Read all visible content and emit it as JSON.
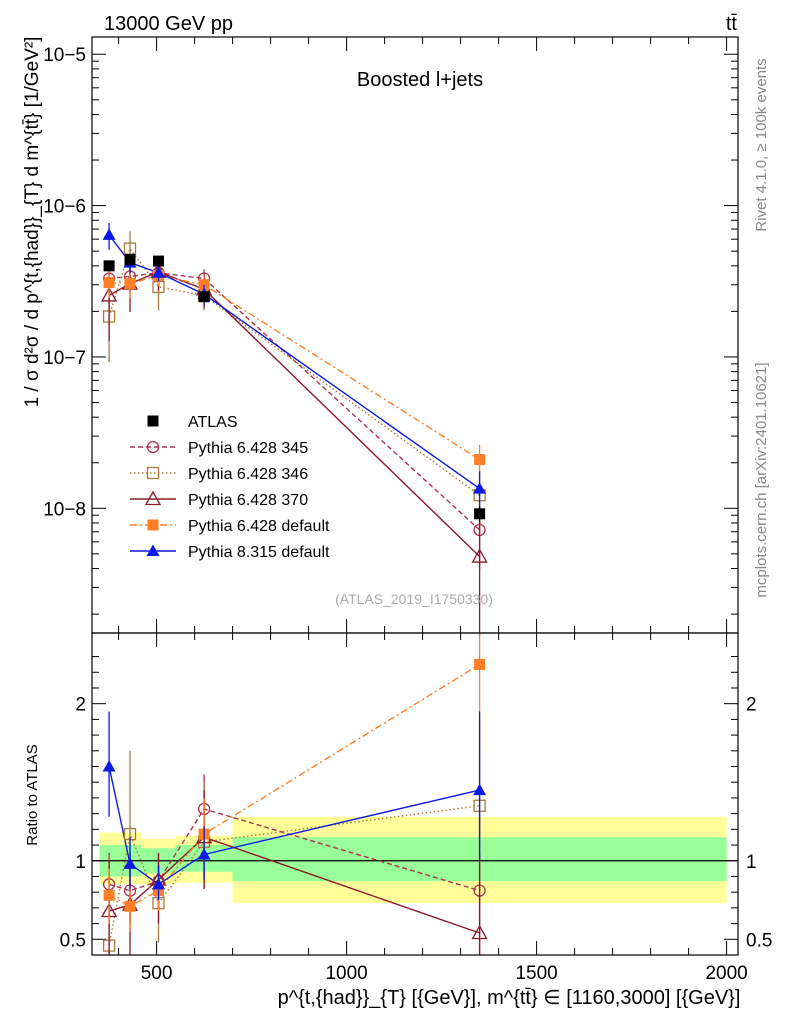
{
  "header": {
    "energy_label": "13000 GeV pp",
    "process_label": "tt̄",
    "rivet_label": "Rivet 4.1.0, ≥ 100k events",
    "mcplots_label": "mcplots.cern.ch [arXiv:2401.10621]"
  },
  "chart_data": [
    {
      "type": "line",
      "name": "main",
      "title": "Boosted l+jets",
      "watermark": "(ATLAS_2019_I1750330)",
      "ylabel": "1 / σ d²σ / d p^{t,{had}}_{T} d m^{tt̄} [1/GeV²]",
      "yscale": "log",
      "xlim": [
        330,
        2030
      ],
      "ylim": [
        1.5e-09,
        1.3e-05
      ],
      "yticks": [
        {
          "value": 1e-08,
          "label": "10−8"
        },
        {
          "value": 1e-07,
          "label": "10−7"
        },
        {
          "value": 1e-06,
          "label": "10−6"
        },
        {
          "value": 1e-05,
          "label": "10−5"
        }
      ],
      "x": [
        375,
        430,
        505,
        625,
        1350
      ],
      "legend_position": "center-left",
      "series": [
        {
          "name": "ATLAS",
          "color": "#000000",
          "marker": "square-filled",
          "dash": "none",
          "values": [
            4e-07,
            4.4e-07,
            4.3e-07,
            2.5e-07,
            9.2e-09
          ],
          "err_rel": [
            0.04,
            0.04,
            0.04,
            0.05,
            0.12
          ]
        },
        {
          "name": "Pythia 6.428 345",
          "color": "#b03050",
          "marker": "circle-open",
          "dash": "5,3",
          "values": [
            3.3e-07,
            3.4e-07,
            3.6e-07,
            3.3e-07,
            7.2e-09
          ],
          "err_rel": [
            0.2,
            0.2,
            0.15,
            0.15,
            0.45
          ]
        },
        {
          "name": "Pythia 6.428 346",
          "color": "#a8793a",
          "marker": "square-open",
          "dash": "1.5,2.5",
          "values": [
            1.85e-07,
            5.2e-07,
            2.9e-07,
            2.55e-07,
            1.22e-08
          ],
          "err_rel": [
            0.5,
            0.3,
            0.3,
            0.2,
            0.4
          ]
        },
        {
          "name": "Pythia 6.428 370",
          "color": "#8b1a2a",
          "marker": "triangle-open",
          "dash": "none",
          "values": [
            2.55e-07,
            3.05e-07,
            3.65e-07,
            2.8e-07,
            4.8e-09
          ],
          "err_rel": [
            0.5,
            0.35,
            0.25,
            0.25,
            0.7
          ]
        },
        {
          "name": "Pythia 6.428 default",
          "color": "#ff7f27",
          "marker": "square-filled",
          "dash": "7,3,2,3",
          "values": [
            3.1e-07,
            3.05e-07,
            3.45e-07,
            3e-07,
            2.1e-08
          ],
          "err_rel": [
            0.2,
            0.2,
            0.15,
            0.15,
            0.25
          ]
        },
        {
          "name": "Pythia 8.315 default",
          "color": "#0a1ae6",
          "marker": "triangle-filled",
          "dash": "none",
          "values": [
            6.4e-07,
            4.2e-07,
            3.6e-07,
            2.6e-07,
            1.35e-08
          ],
          "err_rel": [
            0.2,
            0.15,
            0.12,
            0.15,
            0.3
          ]
        }
      ]
    },
    {
      "type": "line",
      "name": "ratio",
      "ylabel": "Ratio to ATLAS",
      "xlabel": "p^{t,{had}}_{T} [{GeV}], m^{tt̄} ∈ [1160,3000] [{GeV}]",
      "xlim": [
        330,
        2030
      ],
      "ylim": [
        0.4,
        2.45
      ],
      "xticks": [
        {
          "value": 500,
          "label": "500"
        },
        {
          "value": 1000,
          "label": "1000"
        },
        {
          "value": 1500,
          "label": "1500"
        },
        {
          "value": 2000,
          "label": "2000"
        }
      ],
      "yticks": [
        {
          "value": 0.5,
          "label": "0.5"
        },
        {
          "value": 1,
          "label": "1"
        },
        {
          "value": 2,
          "label": "2"
        }
      ],
      "bands": [
        {
          "x0": 350,
          "x1": 400,
          "yellow": [
            0.85,
            1.18
          ],
          "green": [
            0.9,
            1.1
          ]
        },
        {
          "x0": 400,
          "x1": 460,
          "yellow": [
            0.85,
            1.18
          ],
          "green": [
            0.9,
            1.1
          ]
        },
        {
          "x0": 460,
          "x1": 550,
          "yellow": [
            0.85,
            1.14
          ],
          "green": [
            0.92,
            1.08
          ]
        },
        {
          "x0": 550,
          "x1": 700,
          "yellow": [
            0.86,
            1.16
          ],
          "green": [
            0.93,
            1.1
          ]
        },
        {
          "x0": 700,
          "x1": 2000,
          "yellow": [
            0.73,
            1.28
          ],
          "green": [
            0.87,
            1.15
          ]
        }
      ],
      "x": [
        375,
        430,
        505,
        625,
        1350
      ],
      "series": [
        {
          "name": "Pythia 6.428 345",
          "color": "#b03050",
          "marker": "circle-open",
          "dash": "5,3",
          "values": [
            0.85,
            0.81,
            0.87,
            1.33,
            0.81
          ],
          "err": [
            [
              0.65,
              1.05
            ],
            [
              0.6,
              1.0
            ],
            [
              0.7,
              1.04
            ],
            [
              0.88,
              1.55
            ],
            [
              0.4,
              1.3
            ]
          ]
        },
        {
          "name": "Pythia 6.428 346",
          "color": "#a8793a",
          "marker": "square-open",
          "dash": "1.5,2.5",
          "values": [
            0.46,
            1.17,
            0.73,
            1.12,
            1.35
          ],
          "err": [
            [
              0.3,
              0.9
            ],
            [
              0.8,
              1.7
            ],
            [
              0.48,
              1.05
            ],
            [
              0.82,
              1.5
            ],
            [
              0.8,
              1.9
            ]
          ]
        },
        {
          "name": "Pythia 6.428 370",
          "color": "#8b1a2a",
          "marker": "triangle-open",
          "dash": "none",
          "values": [
            0.68,
            0.72,
            0.88,
            1.15,
            0.54
          ],
          "err": [
            [
              0.35,
              1.0
            ],
            [
              0.4,
              1.05
            ],
            [
              0.6,
              1.05
            ],
            [
              0.82,
              1.45
            ],
            [
              0.2,
              1.05
            ]
          ]
        },
        {
          "name": "Pythia 6.428 default",
          "color": "#ff7f27",
          "marker": "square-filled",
          "dash": "7,3,2,3",
          "values": [
            0.78,
            0.71,
            0.81,
            1.17,
            2.25
          ],
          "err": [
            [
              0.6,
              0.95
            ],
            [
              0.55,
              0.88
            ],
            [
              0.68,
              0.95
            ],
            [
              0.95,
              1.4
            ],
            [
              1.7,
              2.45
            ]
          ]
        },
        {
          "name": "Pythia 8.315 default",
          "color": "#0a1ae6",
          "marker": "triangle-filled",
          "dash": "none",
          "values": [
            1.6,
            0.98,
            0.85,
            1.04,
            1.45
          ],
          "err": [
            [
              1.28,
              1.95
            ],
            [
              0.82,
              1.15
            ],
            [
              0.75,
              0.97
            ],
            [
              0.88,
              1.22
            ],
            [
              1.0,
              1.95
            ]
          ]
        }
      ]
    }
  ]
}
